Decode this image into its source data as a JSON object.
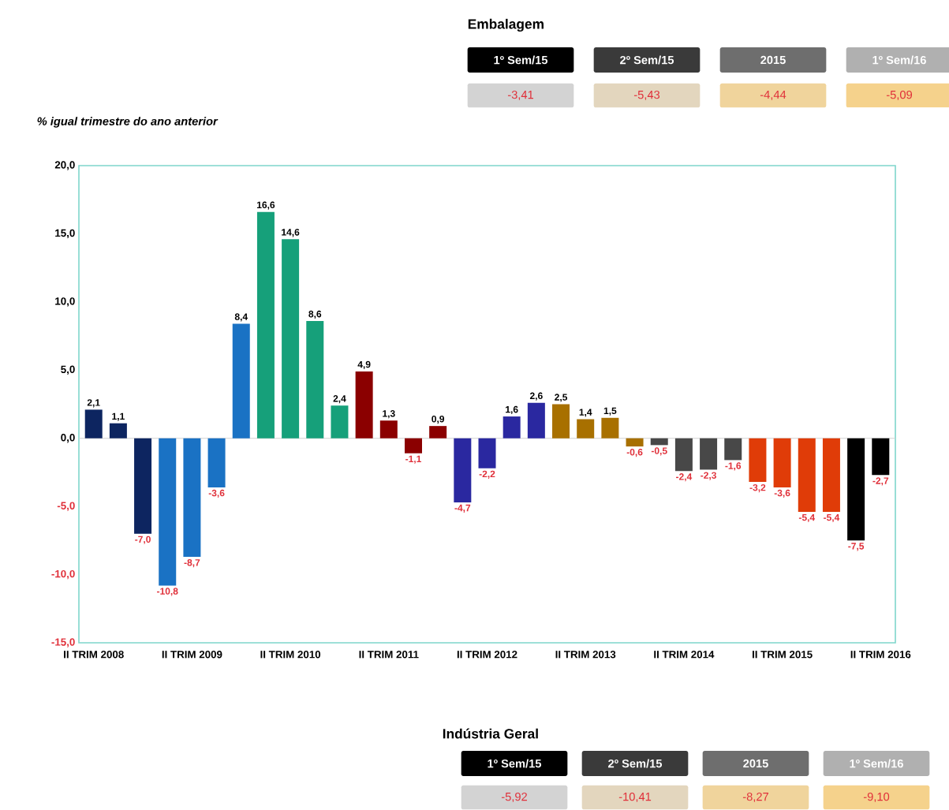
{
  "chart_data": [
    {
      "type": "other",
      "title": "Embalagem",
      "categories": [
        "1º Sem/15",
        "2º Sem/15",
        "2015",
        "1º Sem/16"
      ],
      "values": [
        -3.41,
        -5.43,
        -4.44,
        -5.09
      ],
      "value_labels": [
        "-3,41",
        "-5,43",
        "-4,44",
        "-5,09"
      ]
    },
    {
      "type": "bar",
      "ylabel": "% igual trimestre do ano anterior",
      "categories": [
        "II TRIM 2008",
        null,
        null,
        null,
        "II TRIM 2009",
        null,
        null,
        null,
        "II TRIM 2010",
        null,
        null,
        null,
        "II TRIM 2011",
        null,
        null,
        null,
        "II TRIM 2012",
        null,
        null,
        null,
        "II TRIM 2013",
        null,
        null,
        null,
        "II TRIM 2014",
        null,
        null,
        null,
        "II TRIM 2015",
        null,
        null,
        null,
        "II TRIM 2016"
      ],
      "values": [
        2.1,
        1.1,
        -7.0,
        -10.8,
        -8.7,
        -3.6,
        8.4,
        16.6,
        14.6,
        8.6,
        2.4,
        4.9,
        1.3,
        -1.1,
        0.9,
        -4.7,
        -2.2,
        1.6,
        2.6,
        2.5,
        1.4,
        1.5,
        -0.6,
        -0.5,
        -2.4,
        -2.3,
        -1.6,
        -3.2,
        -3.6,
        -5.4,
        -5.4,
        -7.5,
        -2.7
      ],
      "value_labels": [
        "2,1",
        "1,1",
        "-7,0",
        "-10,8",
        "-8,7",
        "-3,6",
        "8,4",
        "16,6",
        "14,6",
        "8,6",
        "2,4",
        "4,9",
        "1,3",
        "-1,1",
        "0,9",
        "-4,7",
        "-2,2",
        "1,6",
        "2,6",
        "2,5",
        "1,4",
        "1,5",
        "-0,6",
        "-0,5",
        "-2,4",
        "-2,3",
        "-1,6",
        "-3,2",
        "-3,6",
        "-5,4",
        "-5,4",
        "-7,5",
        "-2,7"
      ],
      "colors": [
        "#0d2560",
        "#0d2560",
        "#0d2560",
        "#1a72c4",
        "#1a72c4",
        "#1a72c4",
        "#1a72c4",
        "#16a07a",
        "#16a07a",
        "#16a07a",
        "#16a07a",
        "#8b0000",
        "#8b0000",
        "#8b0000",
        "#8b0000",
        "#2a28a0",
        "#2a28a0",
        "#2a28a0",
        "#2a28a0",
        "#a87000",
        "#a87000",
        "#a87000",
        "#a87000",
        "#484848",
        "#484848",
        "#484848",
        "#484848",
        "#e03c08",
        "#e03c08",
        "#e03c08",
        "#e03c08",
        "#000000",
        "#000000"
      ],
      "ylim": [
        -15,
        20
      ],
      "yticks": [
        {
          "value": -15,
          "label": "-15,0"
        },
        {
          "value": -10,
          "label": "-10,0"
        },
        {
          "value": -5,
          "label": "-5,0"
        },
        {
          "value": 0,
          "label": "0,0"
        },
        {
          "value": 5,
          "label": "5,0"
        },
        {
          "value": 10,
          "label": "10,0"
        },
        {
          "value": 15,
          "label": "15,0"
        },
        {
          "value": 20,
          "label": "20,0"
        }
      ]
    },
    {
      "type": "other",
      "title": "Indústria Geral",
      "categories": [
        "1º Sem/15",
        "2º Sem/15",
        "2015",
        "1º Sem/16"
      ],
      "values": [
        -5.92,
        -10.41,
        -8.27,
        -9.1
      ],
      "value_labels": [
        "-5,92",
        "-10,41",
        "-8,27",
        "-9,10"
      ]
    }
  ]
}
